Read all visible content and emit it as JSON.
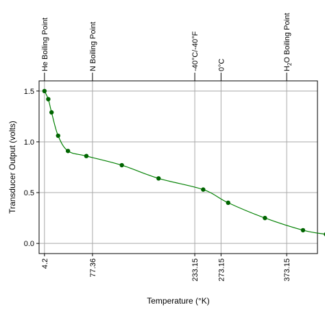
{
  "chart_data": {
    "type": "line",
    "xlabel": "Temperature (°K)",
    "ylabel": "Transducer Output (volts)",
    "title": "",
    "xlim": [
      -4,
      420
    ],
    "ylim": [
      -0.1,
      1.6
    ],
    "grid": true,
    "x_ticks": [
      {
        "value": 4.2,
        "label": "4.2"
      },
      {
        "value": 77.36,
        "label": "77.36"
      },
      {
        "value": 233.15,
        "label": "233.15"
      },
      {
        "value": 273.15,
        "label": "273.15"
      },
      {
        "value": 373.15,
        "label": "373.15"
      }
    ],
    "y_ticks": [
      {
        "value": 0.0,
        "label": "0.0"
      },
      {
        "value": 0.5,
        "label": "0.5"
      },
      {
        "value": 1.0,
        "label": "1.0"
      },
      {
        "value": 1.5,
        "label": "1.5"
      }
    ],
    "reference_lines": [
      {
        "x": 4.2,
        "label": "He Boiling Point",
        "sub": ""
      },
      {
        "x": 77.36,
        "label": "N Boiling Point",
        "sub": ""
      },
      {
        "x": 233.15,
        "label": "-40°C/-40°F",
        "sub": ""
      },
      {
        "x": 273.15,
        "label": "0°C",
        "sub": ""
      },
      {
        "x": 373.15,
        "label": "H",
        "sub": "2",
        "label_rest": "O Boiling Point"
      }
    ],
    "series": [
      {
        "color": "#008000",
        "marker_color": "#006400",
        "x": [
          4.2,
          10,
          15,
          25,
          40,
          68,
          122,
          178,
          246,
          284,
          340,
          398,
          433
        ],
        "y": [
          1.5,
          1.42,
          1.29,
          1.06,
          0.91,
          0.86,
          0.77,
          0.64,
          0.53,
          0.4,
          0.25,
          0.13,
          0.09
        ]
      }
    ]
  }
}
